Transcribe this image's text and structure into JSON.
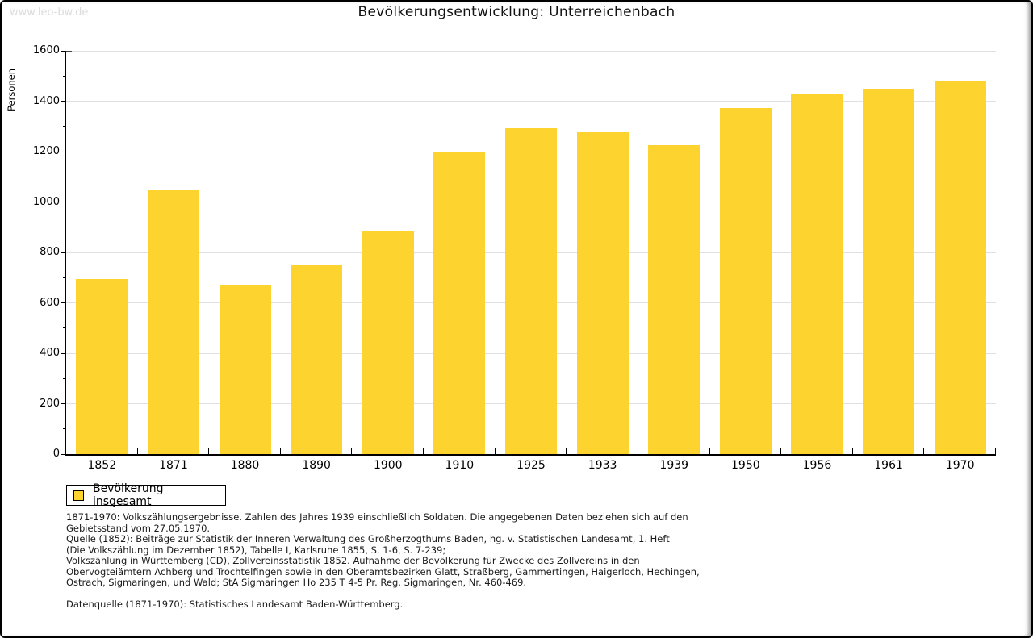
{
  "watermark": "www.leo-bw.de",
  "chart_data": {
    "type": "bar",
    "title": "Bevölkerungsentwicklung: Unterreichenbach",
    "ylabel": "Personen",
    "xlabel": "",
    "categories": [
      "1852",
      "1871",
      "1880",
      "1890",
      "1900",
      "1910",
      "1925",
      "1933",
      "1939",
      "1950",
      "1956",
      "1961",
      "1970"
    ],
    "values": [
      694,
      1050,
      673,
      753,
      885,
      1198,
      1293,
      1276,
      1225,
      1372,
      1432,
      1450,
      1480
    ],
    "ylim": [
      0,
      1600
    ],
    "y_ticks": [
      0,
      200,
      400,
      600,
      800,
      1000,
      1200,
      1400,
      1600
    ],
    "y_minor_ticks": [
      100,
      300,
      500,
      700,
      900,
      1100,
      1300,
      1500
    ],
    "grid": true,
    "legend": [
      "Bevölkerung insgesamt"
    ],
    "legend_position": "bottom-left",
    "bar_color": "#FDD32F",
    "grid_color": "#e0e0e0"
  },
  "footnotes": {
    "lines": [
      "1871-1970: Volkszählungsergebnisse. Zahlen des Jahres 1939 einschließlich Soldaten. Die angegebenen Daten beziehen sich auf den",
      "Gebietsstand vom 27.05.1970.",
      "Quelle (1852): Beiträge zur Statistik der Inneren Verwaltung des Großherzogthums Baden, hg. v. Statistischen Landesamt, 1. Heft",
      "(Die Volkszählung im Dezember 1852), Tabelle I, Karlsruhe 1855, S. 1-6, S. 7-239;",
      "Volkszählung in Württemberg (CD), Zollvereinsstatistik 1852. Aufnahme der Bevölkerung für Zwecke des Zollvereins in den",
      "Obervogteiämtern Achberg und Trochtelfingen sowie in den Oberamtsbezirken Glatt, Straßberg, Gammertingen, Haigerloch, Hechingen,",
      "Ostrach, Sigmaringen, und Wald; StA Sigmaringen Ho 235 T 4-5 Pr. Reg. Sigmaringen, Nr. 460-469."
    ],
    "datasource": "Datenquelle (1871-1970): Statistisches Landesamt Baden-Württemberg."
  }
}
